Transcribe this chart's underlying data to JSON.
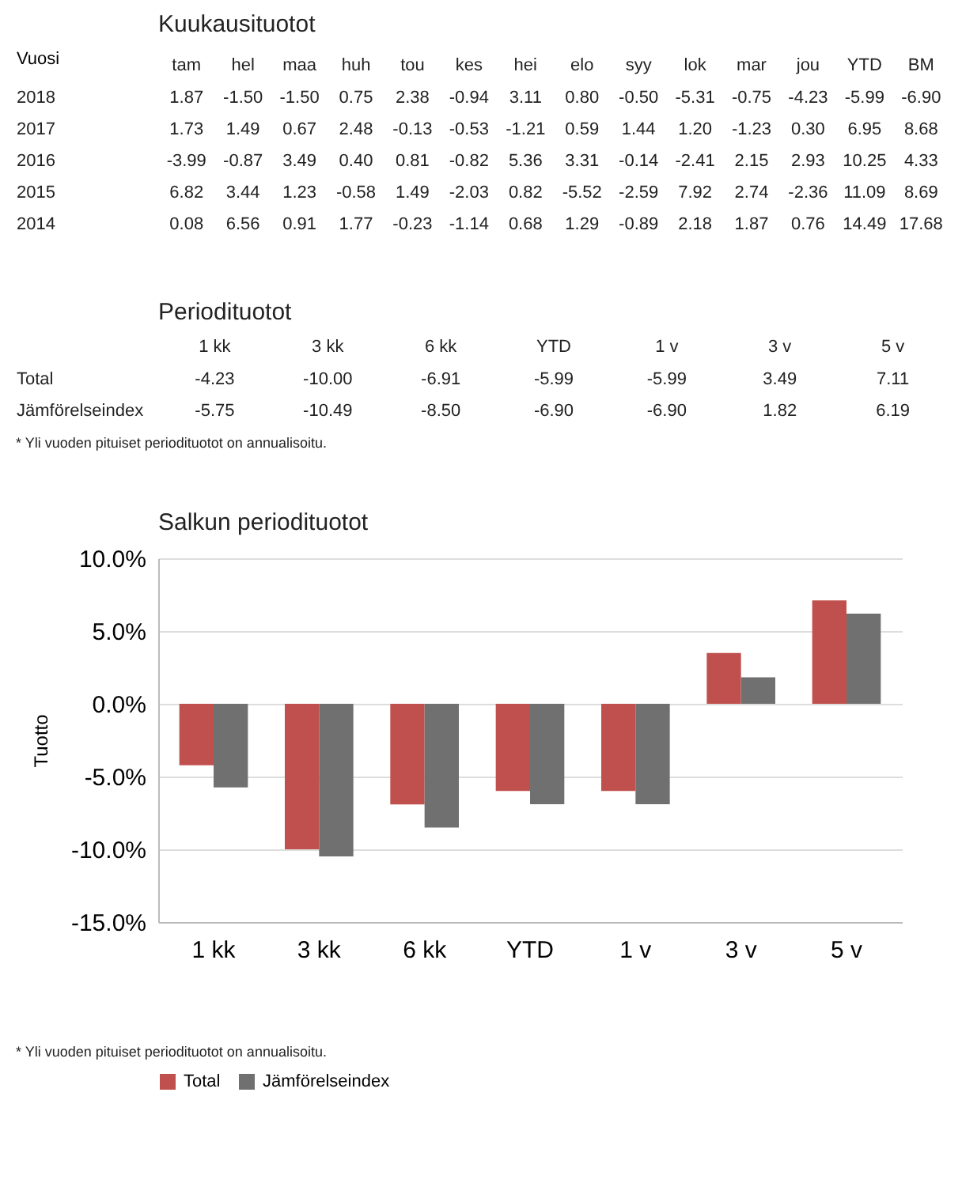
{
  "chart_data": [
    {
      "type": "heatmap",
      "title": "Kuukausituotot",
      "ylabel": "Vuosi",
      "categories": [
        "tam",
        "hel",
        "maa",
        "huh",
        "tou",
        "kes",
        "hei",
        "elo",
        "syy",
        "lok",
        "mar",
        "jou",
        "YTD",
        "BM"
      ],
      "y_categories": [
        "2018",
        "2017",
        "2016",
        "2015",
        "2014"
      ],
      "data_labels": true,
      "cells": [
        [
          1.87,
          -1.5,
          -1.5,
          0.75,
          2.38,
          -0.94,
          3.11,
          0.8,
          -0.5,
          -5.31,
          -0.75,
          -4.23,
          -5.99,
          -6.9
        ],
        [
          1.73,
          1.49,
          0.67,
          2.48,
          -0.13,
          -0.53,
          -1.21,
          0.59,
          1.44,
          1.2,
          -1.23,
          0.3,
          6.95,
          8.68
        ],
        [
          -3.99,
          -0.87,
          3.49,
          0.4,
          0.81,
          -0.82,
          5.36,
          3.31,
          -0.14,
          -2.41,
          2.15,
          2.93,
          10.25,
          4.33
        ],
        [
          6.82,
          3.44,
          1.23,
          -0.58,
          1.49,
          -2.03,
          0.82,
          -5.52,
          -2.59,
          7.92,
          2.74,
          -2.36,
          11.09,
          8.69
        ],
        [
          0.08,
          6.56,
          0.91,
          1.77,
          -0.23,
          -1.14,
          0.68,
          1.29,
          -0.89,
          2.18,
          1.87,
          0.76,
          14.49,
          17.68
        ]
      ],
      "cell_labels": [
        [
          "1.87",
          "-1.50",
          "-1.50",
          "0.75",
          "2.38",
          "-0.94",
          "3.11",
          "0.80",
          "-0.50",
          "-5.31",
          "-0.75",
          "-4.23",
          "-5.99",
          "-6.90"
        ],
        [
          "1.73",
          "1.49",
          "0.67",
          "2.48",
          "-0.13",
          "-0.53",
          "-1.21",
          "0.59",
          "1.44",
          "1.20",
          "-1.23",
          "0.30",
          "6.95",
          "8.68"
        ],
        [
          "-3.99",
          "-0.87",
          "3.49",
          "0.40",
          "0.81",
          "-0.82",
          "5.36",
          "3.31",
          "-0.14",
          "-2.41",
          "2.15",
          "2.93",
          "10.25",
          "4.33"
        ],
        [
          "6.82",
          "3.44",
          "1.23",
          "-0.58",
          "1.49",
          "-2.03",
          "0.82",
          "-5.52",
          "-2.59",
          "7.92",
          "2.74",
          "-2.36",
          "11.09",
          "8.69"
        ],
        [
          "0.08",
          "6.56",
          "0.91",
          "1.77",
          "-0.23",
          "-1.14",
          "0.68",
          "1.29",
          "-0.89",
          "2.18",
          "1.87",
          "0.76",
          "14.49",
          "17.68"
        ]
      ]
    },
    {
      "type": "heatmap",
      "title": "Periodituotot",
      "categories": [
        "1 kk",
        "3 kk",
        "6 kk",
        "YTD",
        "1 v",
        "3 v",
        "5 v"
      ],
      "y_categories": [
        "Total",
        "Jämförelseindex"
      ],
      "data_labels": true,
      "cells": [
        [
          -4.23,
          -10.0,
          -6.91,
          -5.99,
          -5.99,
          3.49,
          7.11
        ],
        [
          -5.75,
          -10.49,
          -8.5,
          -6.9,
          -6.9,
          1.82,
          6.19
        ]
      ],
      "cell_labels": [
        [
          "-4.23",
          "-10.00",
          "-6.91",
          "-5.99",
          "-5.99",
          "3.49",
          "7.11"
        ],
        [
          "-5.75",
          "-10.49",
          "-8.50",
          "-6.90",
          "-6.90",
          "1.82",
          "6.19"
        ]
      ],
      "annotations": [
        "* Yli vuoden pituiset periodituotot on annualisoitu."
      ]
    },
    {
      "type": "bar",
      "title": "Salkun periodituotot",
      "ylabel": "Tuotto",
      "categories": [
        "1 kk",
        "3 kk",
        "6 kk",
        "YTD",
        "1 v",
        "3 v",
        "5 v"
      ],
      "series": [
        {
          "name": "Total",
          "color": "#c0504d",
          "values": [
            -4.23,
            -10.0,
            -6.91,
            -5.99,
            -5.99,
            3.49,
            7.11
          ]
        },
        {
          "name": "Jämförelseindex",
          "color": "#707070",
          "values": [
            -5.75,
            -10.49,
            -8.5,
            -6.9,
            -6.9,
            1.82,
            6.19
          ]
        }
      ],
      "ylim": [
        -15,
        10
      ],
      "yticks": [
        {
          "value": -15,
          "label": "-15.0%"
        },
        {
          "value": -10,
          "label": "-10.0%"
        },
        {
          "value": -5,
          "label": "-5.0%"
        },
        {
          "value": 0,
          "label": "0.0%"
        },
        {
          "value": 5,
          "label": "5.0%"
        },
        {
          "value": 10,
          "label": "10.0%"
        }
      ],
      "grid": "y",
      "legend": "bottom",
      "annotations": [
        "* Yli vuoden pituiset periodituotot on annualisoitu."
      ]
    }
  ]
}
